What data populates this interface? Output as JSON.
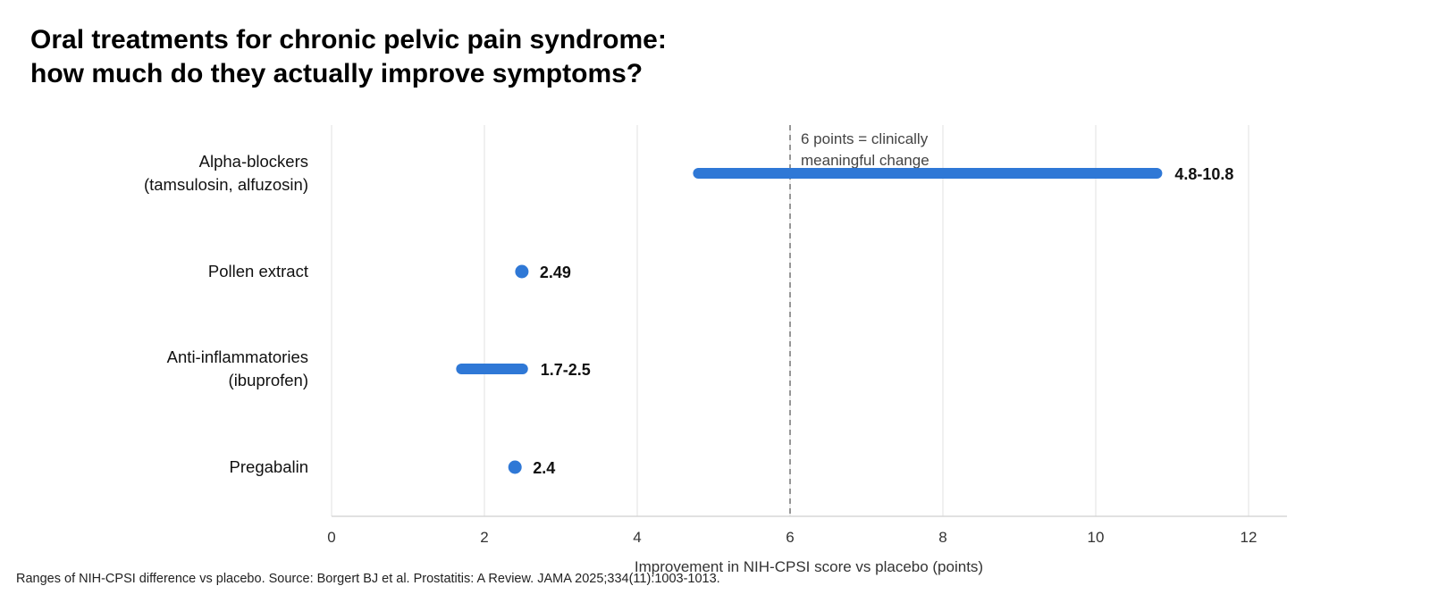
{
  "title_lines": [
    "Oral treatments for chronic pelvic pain syndrome:",
    "how much do they actually improve symptoms?"
  ],
  "footnote": "Ranges of NIH-CPSI difference vs placebo. Source: Borgert BJ et al. Prostatitis: A Review. JAMA 2025;334(11):1003-1013.",
  "colors": {
    "accent": "#2f78d6",
    "grid": "#e2e2e2",
    "reference_line": "#8a8a8a",
    "axis": "#cfcfcf"
  },
  "chart_data": {
    "type": "range",
    "title": "Oral treatments for chronic pelvic pain syndrome: how much do they actually improve symptoms?",
    "xlabel": "Improvement in NIH-CPSI score vs placebo (points)",
    "ylabel": "",
    "xlim": [
      0,
      12.5
    ],
    "xticks": [
      0,
      2,
      4,
      6,
      8,
      10,
      12
    ],
    "grid": "vertical",
    "series": [
      {
        "label_lines": [
          "Alpha-blockers",
          "(tamsulosin, alfuzosin)"
        ],
        "low": 4.8,
        "high": 10.8,
        "value_label": "4.8-10.8"
      },
      {
        "label_lines": [
          "Pollen extract"
        ],
        "low": 2.49,
        "high": 2.49,
        "value_label": "2.49"
      },
      {
        "label_lines": [
          "Anti-inflammatories",
          "(ibuprofen)"
        ],
        "low": 1.7,
        "high": 2.5,
        "value_label": "1.7-2.5"
      },
      {
        "label_lines": [
          "Pregabalin"
        ],
        "low": 2.4,
        "high": 2.4,
        "value_label": "2.4"
      }
    ],
    "reference_line": {
      "x": 6,
      "label_lines": [
        "6 points = clinically",
        "meaningful change"
      ]
    }
  }
}
